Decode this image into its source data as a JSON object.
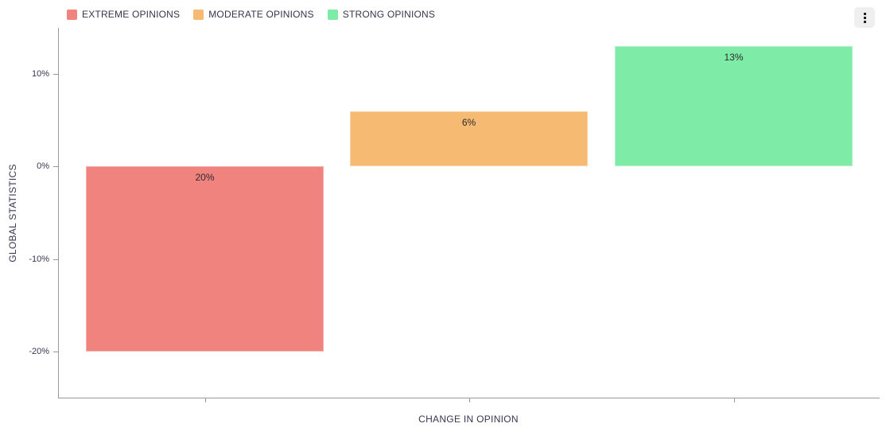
{
  "legend": {
    "items": [
      {
        "label": "EXTREME OPINIONS",
        "color": "#F0837E"
      },
      {
        "label": "MODERATE OPINIONS",
        "color": "#F7BA73"
      },
      {
        "label": "STRONG OPINIONS",
        "color": "#7EECA6"
      }
    ]
  },
  "toolbar": {
    "menu_icon": "kebab-menu-icon"
  },
  "chart_data": {
    "type": "bar",
    "title": "",
    "xlabel": "CHANGE IN OPINION",
    "ylabel": "GLOBAL STATISTICS",
    "categories": [
      "EXTREME OPINIONS",
      "MODERATE OPINIONS",
      "STRONG OPINIONS"
    ],
    "values": [
      -20,
      6,
      13
    ],
    "data_labels": [
      "20%",
      "6%",
      "13%"
    ],
    "bar_colors": [
      "#F0837E",
      "#F7BA73",
      "#7EECA6"
    ],
    "ylim": [
      -25,
      15
    ],
    "yticks": [
      {
        "value": 10,
        "label": "10%"
      },
      {
        "value": 0,
        "label": "0%"
      },
      {
        "value": -10,
        "label": "-10%"
      },
      {
        "value": -20,
        "label": "-20%"
      }
    ],
    "grid": false,
    "legend_position": "top-left",
    "axis_color": "#999999",
    "text_color": "#36364E",
    "label_color": "#2B2B2B"
  }
}
